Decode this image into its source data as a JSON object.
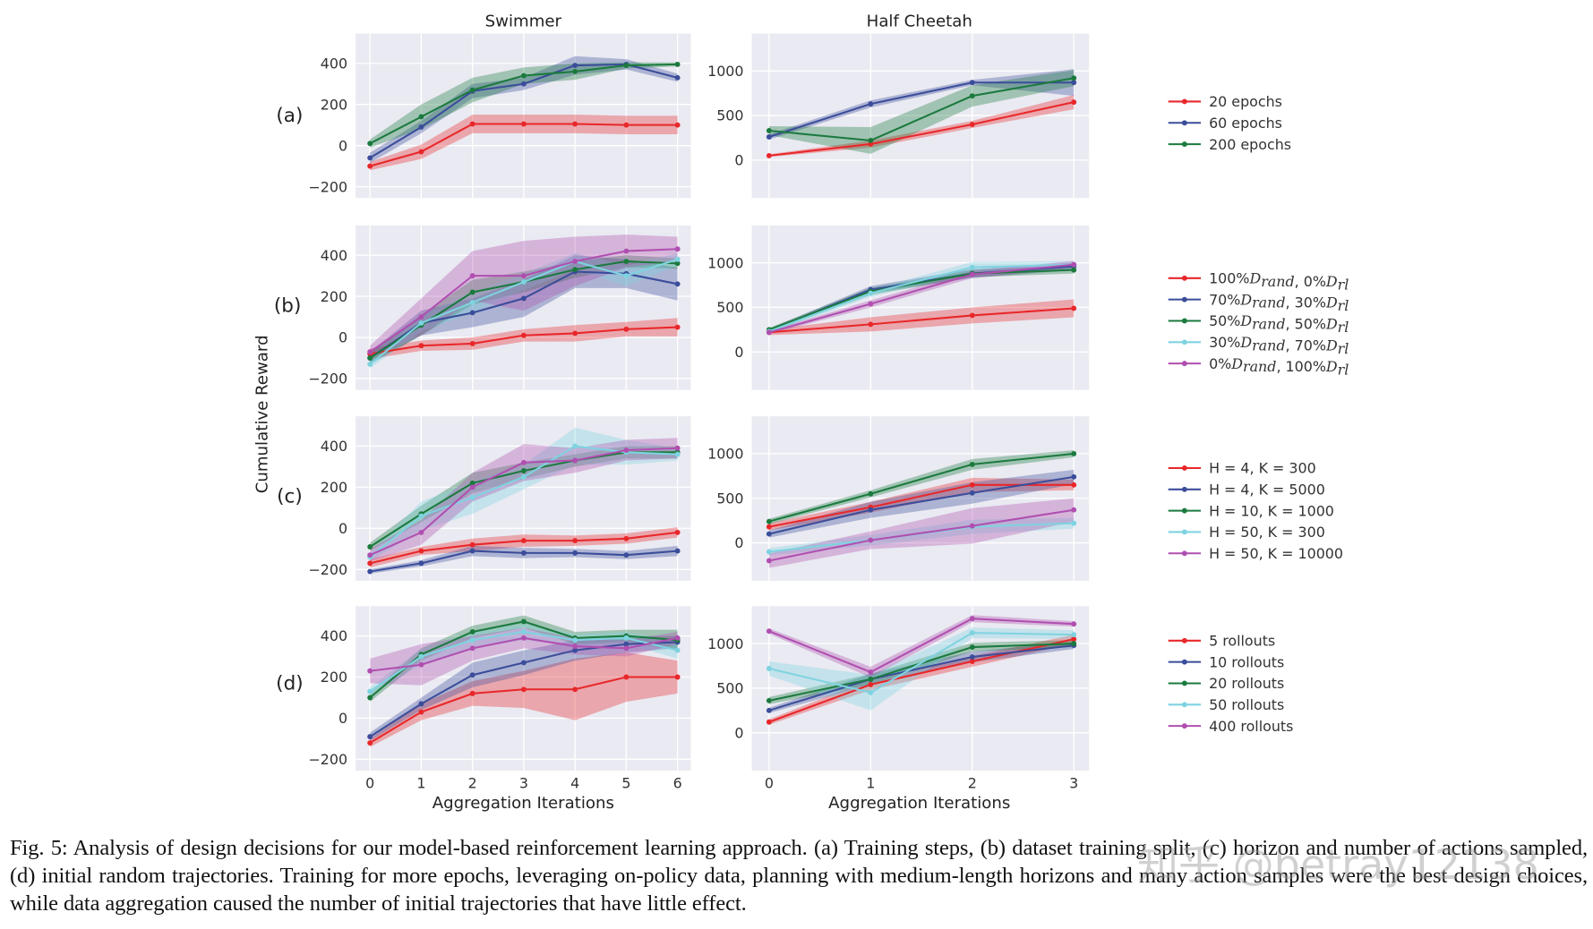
{
  "figure": {
    "column_titles": [
      "Swimmer",
      "Half Cheetah"
    ],
    "row_labels": [
      "(a)",
      "(b)",
      "(c)",
      "(d)"
    ],
    "ylabel": "Cumulative Reward",
    "xlabel": "Aggregation Iterations",
    "caption": "Fig. 5: Analysis of design decisions for our model-based reinforcement learning approach. (a) Training steps, (b) dataset training split, (c) horizon and number of actions sampled, (d) initial random trajectories. Training for more epochs, leveraging on-policy data, planning with medium-length horizons and many action samples were the best design choices, while data aggregation caused the number of initial trajectories that have little effect.",
    "watermark": "知乎 @betray12138",
    "background_color": "#eaeaf2",
    "colors": {
      "red": "#e8272a",
      "blue": "#3b4d9a",
      "green": "#1b7a3e",
      "cyan": "#7fd3e0",
      "magenta": "#b04fb0"
    }
  },
  "legends": [
    [
      {
        "label": "20 epochs",
        "color": "#e8272a"
      },
      {
        "label": "60 epochs",
        "color": "#3b4d9a"
      },
      {
        "label": "200 epochs",
        "color": "#1b7a3e"
      }
    ],
    [
      {
        "label": "100%D_rand, 0%D_rl",
        "color": "#e8272a"
      },
      {
        "label": "70%D_rand, 30%D_rl",
        "color": "#3b4d9a"
      },
      {
        "label": "50%D_rand, 50%D_rl",
        "color": "#1b7a3e"
      },
      {
        "label": "30%D_rand, 70%D_rl",
        "color": "#7fd3e0"
      },
      {
        "label": "0%D_rand, 100%D_rl",
        "color": "#b04fb0"
      }
    ],
    [
      {
        "label": "H = 4, K = 300",
        "color": "#e8272a"
      },
      {
        "label": "H = 4, K = 5000",
        "color": "#3b4d9a"
      },
      {
        "label": "H = 10, K = 1000",
        "color": "#1b7a3e"
      },
      {
        "label": "H = 50, K = 300",
        "color": "#7fd3e0"
      },
      {
        "label": "H = 50, K = 10000",
        "color": "#b04fb0"
      }
    ],
    [
      {
        "label": "5 rollouts",
        "color": "#e8272a"
      },
      {
        "label": "10 rollouts",
        "color": "#3b4d9a"
      },
      {
        "label": "20 rollouts",
        "color": "#1b7a3e"
      },
      {
        "label": "50 rollouts",
        "color": "#7fd3e0"
      },
      {
        "label": "400 rollouts",
        "color": "#b04fb0"
      }
    ]
  ],
  "chart_data": [
    {
      "type": "line",
      "env": "Swimmer",
      "row": "(a)",
      "x": [
        0,
        1,
        2,
        3,
        4,
        5,
        6
      ],
      "xlim": [
        -0.28,
        6.26
      ],
      "ylim": [
        -255,
        545
      ],
      "yticks": [
        400,
        200,
        0,
        -200
      ],
      "ytick_labels": [
        "400",
        "200",
        "0",
        "−200"
      ],
      "xtick_labels": [],
      "grid": true,
      "series": [
        {
          "name": "20 epochs",
          "color": "#e8272a",
          "values": [
            -100,
            -30,
            105,
            105,
            105,
            100,
            100
          ],
          "spread": [
            20,
            35,
            45,
            45,
            45,
            45,
            45
          ]
        },
        {
          "name": "60 epochs",
          "color": "#3b4d9a",
          "values": [
            -60,
            90,
            265,
            300,
            390,
            395,
            330
          ],
          "spread": [
            25,
            30,
            35,
            30,
            45,
            25,
            20
          ]
        },
        {
          "name": "200 epochs",
          "color": "#1b7a3e",
          "values": [
            10,
            140,
            270,
            340,
            360,
            390,
            395
          ],
          "spread": [
            20,
            60,
            60,
            40,
            40,
            15,
            10
          ]
        }
      ]
    },
    {
      "type": "line",
      "env": "Half Cheetah",
      "row": "(a)",
      "x": [
        0,
        1,
        2,
        3
      ],
      "xlim": [
        -0.17,
        3.15
      ],
      "ylim": [
        -425,
        1420
      ],
      "yticks": [
        1000,
        500,
        0
      ],
      "ytick_labels": [
        "1000",
        "500",
        "0"
      ],
      "xtick_labels": [],
      "grid": true,
      "series": [
        {
          "name": "20 epochs",
          "color": "#e8272a",
          "values": [
            50,
            180,
            400,
            650
          ],
          "spread": [
            15,
            40,
            40,
            80
          ]
        },
        {
          "name": "60 epochs",
          "color": "#3b4d9a",
          "values": [
            260,
            630,
            870,
            870
          ],
          "spread": [
            30,
            40,
            30,
            150
          ]
        },
        {
          "name": "200 epochs",
          "color": "#1b7a3e",
          "values": [
            330,
            220,
            720,
            920
          ],
          "spread": [
            50,
            150,
            120,
            90
          ]
        }
      ]
    },
    {
      "type": "line",
      "env": "Swimmer",
      "row": "(b)",
      "x": [
        0,
        1,
        2,
        3,
        4,
        5,
        6
      ],
      "xlim": [
        -0.28,
        6.26
      ],
      "ylim": [
        -255,
        545
      ],
      "yticks": [
        400,
        200,
        0,
        -200
      ],
      "ytick_labels": [
        "400",
        "200",
        "0",
        "−200"
      ],
      "xtick_labels": [],
      "grid": true,
      "series": [
        {
          "name": "100%D_rand, 0%D_rl",
          "color": "#e8272a",
          "values": [
            -80,
            -40,
            -30,
            10,
            20,
            40,
            50
          ],
          "spread": [
            25,
            25,
            30,
            30,
            40,
            35,
            45
          ]
        },
        {
          "name": "70%D_rand, 30%D_rl",
          "color": "#3b4d9a",
          "values": [
            -100,
            70,
            120,
            190,
            320,
            310,
            260
          ],
          "spread": [
            30,
            60,
            70,
            90,
            80,
            70,
            80
          ]
        },
        {
          "name": "50%D_rand, 50%D_rl",
          "color": "#1b7a3e",
          "values": [
            -100,
            60,
            220,
            270,
            330,
            370,
            360
          ],
          "spread": [
            25,
            50,
            60,
            50,
            40,
            30,
            25
          ]
        },
        {
          "name": "30%D_rand, 70%D_rl",
          "color": "#7fd3e0",
          "values": [
            -130,
            70,
            170,
            270,
            370,
            300,
            380
          ],
          "spread": [
            20,
            40,
            50,
            40,
            40,
            50,
            30
          ]
        },
        {
          "name": "0%D_rand, 100%D_rl",
          "color": "#b04fb0",
          "values": [
            -70,
            100,
            300,
            300,
            370,
            420,
            430
          ],
          "spread": [
            30,
            90,
            120,
            170,
            120,
            80,
            60
          ]
        }
      ]
    },
    {
      "type": "line",
      "env": "Half Cheetah",
      "row": "(b)",
      "x": [
        0,
        1,
        2,
        3
      ],
      "xlim": [
        -0.17,
        3.15
      ],
      "ylim": [
        -425,
        1420
      ],
      "yticks": [
        1000,
        500,
        0
      ],
      "ytick_labels": [
        "1000",
        "500",
        "0"
      ],
      "xtick_labels": [],
      "grid": true,
      "series": [
        {
          "name": "100%D_rand, 0%D_rl",
          "color": "#e8272a",
          "values": [
            220,
            310,
            410,
            490
          ],
          "spread": [
            30,
            80,
            90,
            100
          ]
        },
        {
          "name": "70%D_rand, 30%D_rl",
          "color": "#3b4d9a",
          "values": [
            240,
            700,
            880,
            960
          ],
          "spread": [
            20,
            40,
            50,
            40
          ]
        },
        {
          "name": "50%D_rand, 50%D_rl",
          "color": "#1b7a3e",
          "values": [
            250,
            680,
            880,
            920
          ],
          "spread": [
            20,
            40,
            40,
            40
          ]
        },
        {
          "name": "30%D_rand, 70%D_rl",
          "color": "#7fd3e0",
          "values": [
            230,
            660,
            950,
            980
          ],
          "spread": [
            20,
            40,
            60,
            40
          ]
        },
        {
          "name": "0%D_rand, 100%D_rl",
          "color": "#b04fb0",
          "values": [
            220,
            540,
            870,
            980
          ],
          "spread": [
            20,
            40,
            40,
            40
          ]
        }
      ]
    },
    {
      "type": "line",
      "env": "Swimmer",
      "row": "(c)",
      "x": [
        0,
        1,
        2,
        3,
        4,
        5,
        6
      ],
      "xlim": [
        -0.28,
        6.26
      ],
      "ylim": [
        -255,
        545
      ],
      "yticks": [
        400,
        200,
        0,
        -200
      ],
      "ytick_labels": [
        "400",
        "200",
        "0",
        "−200"
      ],
      "xtick_labels": [],
      "grid": true,
      "series": [
        {
          "name": "H = 4, K = 300",
          "color": "#e8272a",
          "values": [
            -170,
            -110,
            -80,
            -60,
            -60,
            -50,
            -20
          ],
          "spread": [
            20,
            20,
            30,
            30,
            25,
            25,
            25
          ]
        },
        {
          "name": "H = 4, K = 5000",
          "color": "#3b4d9a",
          "values": [
            -210,
            -170,
            -110,
            -120,
            -120,
            -130,
            -110
          ],
          "spread": [
            10,
            15,
            25,
            25,
            20,
            20,
            25
          ]
        },
        {
          "name": "H = 10, K = 1000",
          "color": "#1b7a3e",
          "values": [
            -90,
            70,
            220,
            280,
            330,
            370,
            370
          ],
          "spread": [
            20,
            40,
            50,
            40,
            30,
            30,
            30
          ]
        },
        {
          "name": "H = 50, K = 300",
          "color": "#7fd3e0",
          "values": [
            -140,
            60,
            150,
            250,
            400,
            370,
            360
          ],
          "spread": [
            20,
            70,
            80,
            60,
            90,
            60,
            30
          ]
        },
        {
          "name": "H = 50, K = 10000",
          "color": "#b04fb0",
          "values": [
            -130,
            -20,
            200,
            320,
            330,
            380,
            390
          ],
          "spread": [
            30,
            60,
            70,
            90,
            60,
            50,
            50
          ]
        }
      ]
    },
    {
      "type": "line",
      "env": "Half Cheetah",
      "row": "(c)",
      "x": [
        0,
        1,
        2,
        3
      ],
      "xlim": [
        -0.17,
        3.15
      ],
      "ylim": [
        -425,
        1420
      ],
      "yticks": [
        1000,
        500,
        0
      ],
      "ytick_labels": [
        "1000",
        "500",
        "0"
      ],
      "xtick_labels": [],
      "grid": true,
      "series": [
        {
          "name": "H = 4, K = 300",
          "color": "#e8272a",
          "values": [
            180,
            400,
            650,
            650
          ],
          "spread": [
            40,
            60,
            80,
            60
          ]
        },
        {
          "name": "H = 4, K = 5000",
          "color": "#3b4d9a",
          "values": [
            100,
            370,
            560,
            740
          ],
          "spread": [
            40,
            90,
            120,
            80
          ]
        },
        {
          "name": "H = 10, K = 1000",
          "color": "#1b7a3e",
          "values": [
            240,
            550,
            880,
            1000
          ],
          "spread": [
            30,
            40,
            60,
            40
          ]
        },
        {
          "name": "H = 50, K = 300",
          "color": "#7fd3e0",
          "values": [
            -100,
            30,
            180,
            220
          ],
          "spread": [
            40,
            60,
            80,
            60
          ]
        },
        {
          "name": "H = 50, K = 10000",
          "color": "#b04fb0",
          "values": [
            -200,
            30,
            190,
            370
          ],
          "spread": [
            80,
            100,
            200,
            130
          ]
        }
      ]
    },
    {
      "type": "line",
      "env": "Swimmer",
      "row": "(d)",
      "x": [
        0,
        1,
        2,
        3,
        4,
        5,
        6
      ],
      "xlim": [
        -0.28,
        6.26
      ],
      "ylim": [
        -255,
        545
      ],
      "yticks": [
        400,
        200,
        0,
        -200
      ],
      "ytick_labels": [
        "400",
        "200",
        "0",
        "−200"
      ],
      "xtick_labels": [
        "0",
        "1",
        "2",
        "3",
        "4",
        "5",
        "6"
      ],
      "grid": true,
      "series": [
        {
          "name": "5 rollouts",
          "color": "#e8272a",
          "values": [
            -120,
            30,
            120,
            140,
            140,
            200,
            200
          ],
          "spread": [
            20,
            40,
            60,
            90,
            150,
            120,
            80
          ]
        },
        {
          "name": "10 rollouts",
          "color": "#3b4d9a",
          "values": [
            -90,
            70,
            210,
            270,
            330,
            360,
            370
          ],
          "spread": [
            20,
            30,
            60,
            60,
            50,
            40,
            30
          ]
        },
        {
          "name": "20 rollouts",
          "color": "#1b7a3e",
          "values": [
            100,
            310,
            420,
            470,
            390,
            400,
            380
          ],
          "spread": [
            20,
            30,
            30,
            30,
            30,
            30,
            50
          ]
        },
        {
          "name": "50 rollouts",
          "color": "#7fd3e0",
          "values": [
            130,
            300,
            380,
            420,
            380,
            390,
            330
          ],
          "spread": [
            20,
            40,
            40,
            40,
            30,
            30,
            40
          ]
        },
        {
          "name": "400 rollouts",
          "color": "#b04fb0",
          "values": [
            230,
            260,
            340,
            390,
            350,
            340,
            390
          ],
          "spread": [
            60,
            100,
            60,
            50,
            40,
            40,
            30
          ]
        }
      ]
    },
    {
      "type": "line",
      "env": "Half Cheetah",
      "row": "(d)",
      "x": [
        0,
        1,
        2,
        3
      ],
      "xlim": [
        -0.17,
        3.15
      ],
      "ylim": [
        -425,
        1420
      ],
      "yticks": [
        1000,
        500,
        0
      ],
      "ytick_labels": [
        "1000",
        "500",
        "0"
      ],
      "xtick_labels": [
        "0",
        "1",
        "2",
        "3"
      ],
      "grid": true,
      "series": [
        {
          "name": "5 rollouts",
          "color": "#e8272a",
          "values": [
            120,
            540,
            800,
            1050
          ],
          "spread": [
            30,
            60,
            60,
            50
          ]
        },
        {
          "name": "10 rollouts",
          "color": "#3b4d9a",
          "values": [
            250,
            600,
            850,
            980
          ],
          "spread": [
            30,
            60,
            60,
            40
          ]
        },
        {
          "name": "20 rollouts",
          "color": "#1b7a3e",
          "values": [
            360,
            600,
            960,
            1000
          ],
          "spread": [
            40,
            60,
            50,
            40
          ]
        },
        {
          "name": "50 rollouts",
          "color": "#7fd3e0",
          "values": [
            720,
            450,
            1120,
            1100
          ],
          "spread": [
            80,
            200,
            60,
            50
          ]
        },
        {
          "name": "400 rollouts",
          "color": "#b04fb0",
          "values": [
            1140,
            680,
            1280,
            1220
          ],
          "spread": [
            30,
            60,
            40,
            30
          ]
        }
      ]
    }
  ]
}
